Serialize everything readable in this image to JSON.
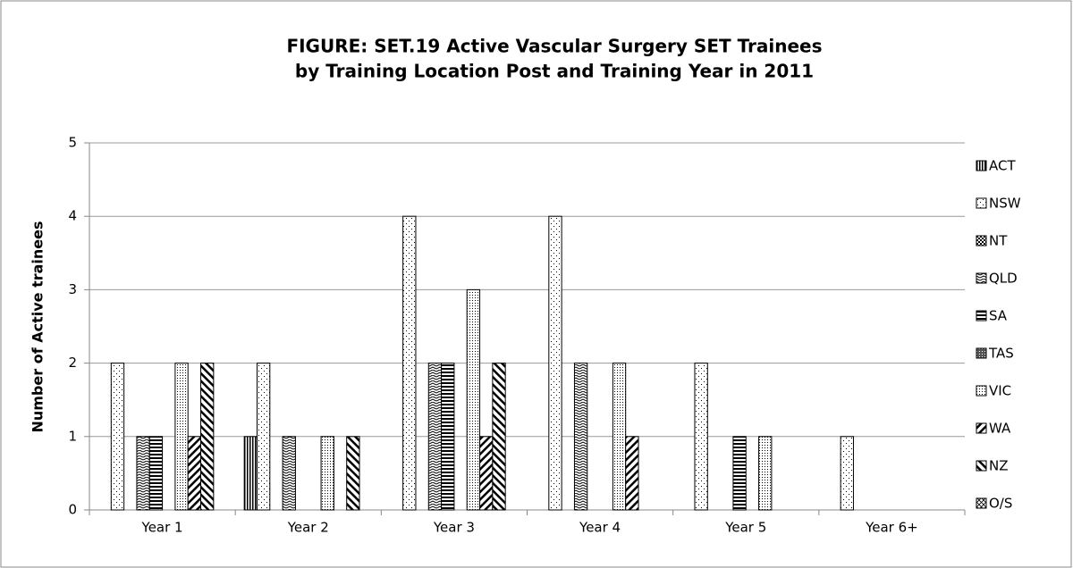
{
  "chart_data": {
    "type": "bar",
    "title": [
      "FIGURE: SET.19 Active Vascular Surgery SET Trainees",
      "by Training Location Post and Training Year in 2011"
    ],
    "y_label": "Number of Active trainees",
    "categories": [
      "Year 1",
      "Year 2",
      "Year 3",
      "Year 4",
      "Year 5",
      "Year 6+"
    ],
    "series": [
      {
        "name": "ACT",
        "color": "#000000",
        "pattern": "vertical",
        "values": [
          0,
          1,
          0,
          0,
          0,
          0
        ]
      },
      {
        "name": "NSW",
        "color": "#000000",
        "pattern": "dots",
        "values": [
          2,
          2,
          4,
          4,
          2,
          1
        ]
      },
      {
        "name": "NT",
        "color": "#000000",
        "pattern": "checker",
        "values": [
          0,
          0,
          0,
          0,
          0,
          0
        ]
      },
      {
        "name": "QLD",
        "color": "#000000",
        "pattern": "zigzag",
        "values": [
          1,
          1,
          2,
          2,
          0,
          0
        ]
      },
      {
        "name": "SA",
        "color": "#000000",
        "pattern": "horizontal",
        "values": [
          1,
          0,
          2,
          0,
          1,
          0
        ]
      },
      {
        "name": "TAS",
        "color": "#000000",
        "pattern": "grid",
        "values": [
          0,
          0,
          0,
          0,
          0,
          0
        ]
      },
      {
        "name": "VIC",
        "color": "#000000",
        "pattern": "dense-dots",
        "values": [
          2,
          1,
          3,
          2,
          1,
          0
        ]
      },
      {
        "name": "WA",
        "color": "#000000",
        "pattern": "diagonal",
        "values": [
          1,
          0,
          1,
          1,
          0,
          0
        ]
      },
      {
        "name": "NZ",
        "color": "#000000",
        "pattern": "back-diagonal",
        "values": [
          2,
          1,
          2,
          0,
          0,
          0
        ]
      },
      {
        "name": "O/S",
        "color": "#000000",
        "pattern": "cross",
        "values": [
          0,
          0,
          0,
          0,
          0,
          0
        ]
      }
    ],
    "ylim": [
      0,
      5
    ],
    "yticks": [
      0,
      1,
      2,
      3,
      4,
      5
    ],
    "grid": true,
    "legend": "right"
  }
}
